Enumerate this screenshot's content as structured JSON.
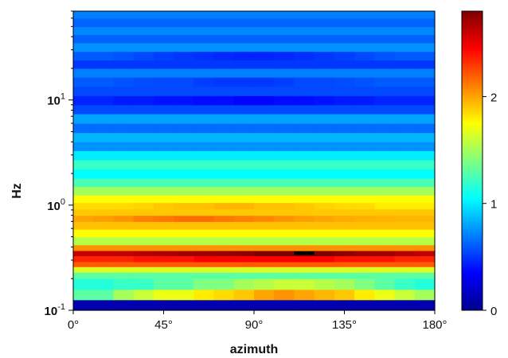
{
  "chart_data": {
    "type": "heatmap",
    "title": "",
    "xlabel": "azimuth",
    "ylabel": "Hz",
    "x_scale": "linear",
    "y_scale": "log",
    "xlim": [
      0,
      180
    ],
    "ylim": [
      0.1,
      70
    ],
    "x_ticks": [
      {
        "value": 0,
        "label": "0°"
      },
      {
        "value": 45,
        "label": "45°"
      },
      {
        "value": 90,
        "label": "90°"
      },
      {
        "value": 135,
        "label": "135°"
      },
      {
        "value": 180,
        "label": "180°"
      }
    ],
    "y_ticks": [
      {
        "value": 0.1,
        "base": "10",
        "exp": "-1"
      },
      {
        "value": 1,
        "base": "10",
        "exp": "0"
      },
      {
        "value": 10,
        "base": "10",
        "exp": "1"
      }
    ],
    "colorbar": {
      "colormap": "jet",
      "vmin": 0,
      "vmax": 2.8,
      "ticks": [
        {
          "value": 0,
          "label": "0"
        },
        {
          "value": 1,
          "label": "1"
        },
        {
          "value": 2,
          "label": "2"
        }
      ]
    },
    "azimuth_columns": 18,
    "frequency_bands": [
      {
        "f_low": 0.1,
        "f_high": 0.126,
        "values": [
          0.1
        ]
      },
      {
        "f_low": 0.126,
        "f_high": 0.158,
        "values": [
          1.3,
          1.3,
          1.5,
          1.6,
          1.7,
          1.7,
          1.8,
          1.85,
          1.9,
          2.0,
          2.05,
          2.0,
          1.95,
          1.9,
          1.8,
          1.7,
          1.6,
          1.5
        ]
      },
      {
        "f_low": 0.158,
        "f_high": 0.2,
        "values": [
          1.15,
          1.15,
          1.2,
          1.2,
          1.3,
          1.3,
          1.4,
          1.4,
          1.5,
          1.55,
          1.6,
          1.6,
          1.55,
          1.5,
          1.4,
          1.3,
          1.2,
          1.15
        ]
      },
      {
        "f_low": 0.2,
        "f_high": 0.23,
        "values": [
          1.3
        ]
      },
      {
        "f_low": 0.23,
        "f_high": 0.26,
        "values": [
          1.65
        ]
      },
      {
        "f_low": 0.26,
        "f_high": 0.29,
        "values": [
          2.2
        ]
      },
      {
        "f_low": 0.29,
        "f_high": 0.33,
        "values": [
          2.35,
          2.35,
          2.35,
          2.4,
          2.4,
          2.4,
          2.45,
          2.45,
          2.45,
          2.45,
          2.45,
          2.45,
          2.45,
          2.4,
          2.4,
          2.4,
          2.35,
          2.35
        ]
      },
      {
        "f_low": 0.33,
        "f_high": 0.37,
        "values": [
          2.6,
          2.6,
          2.62,
          2.65,
          2.68,
          2.7,
          2.72,
          2.74,
          2.76,
          2.8,
          2.82,
          2.85,
          2.8,
          2.76,
          2.72,
          2.7,
          2.66,
          2.62
        ]
      },
      {
        "f_low": 0.37,
        "f_high": 0.42,
        "values": [
          2.05
        ]
      },
      {
        "f_low": 0.42,
        "f_high": 0.5,
        "values": [
          1.55
        ]
      },
      {
        "f_low": 0.5,
        "f_high": 0.59,
        "values": [
          1.75
        ]
      },
      {
        "f_low": 0.59,
        "f_high": 0.7,
        "values": [
          1.92
        ]
      },
      {
        "f_low": 0.7,
        "f_high": 0.8,
        "values": [
          2.0,
          2.02,
          2.05,
          2.1,
          2.12,
          2.15,
          2.15,
          2.12,
          2.1,
          2.08,
          2.05,
          2.02,
          2.0,
          1.98,
          1.97,
          1.96,
          1.95,
          1.95
        ]
      },
      {
        "f_low": 0.8,
        "f_high": 0.92,
        "values": [
          1.9
        ]
      },
      {
        "f_low": 0.92,
        "f_high": 1.06,
        "values": [
          1.85,
          1.85,
          1.85,
          1.87,
          1.9,
          1.92,
          1.92,
          1.95,
          1.95,
          1.92,
          1.92,
          1.9,
          1.87,
          1.85,
          1.85,
          1.8,
          1.8,
          1.8
        ]
      },
      {
        "f_low": 1.06,
        "f_high": 1.25,
        "values": [
          1.75
        ]
      },
      {
        "f_low": 1.25,
        "f_high": 1.5,
        "values": [
          1.5
        ]
      },
      {
        "f_low": 1.5,
        "f_high": 1.8,
        "values": [
          1.25
        ]
      },
      {
        "f_low": 1.8,
        "f_high": 2.2,
        "values": [
          1.05
        ]
      },
      {
        "f_low": 2.2,
        "f_high": 2.7,
        "values": [
          1.2
        ]
      },
      {
        "f_low": 2.7,
        "f_high": 3.3,
        "values": [
          1.0
        ]
      },
      {
        "f_low": 3.3,
        "f_high": 4.0,
        "values": [
          0.75
        ]
      },
      {
        "f_low": 4.0,
        "f_high": 4.9,
        "values": [
          0.85
        ]
      },
      {
        "f_low": 4.9,
        "f_high": 6.0,
        "values": [
          0.65
        ]
      },
      {
        "f_low": 6.0,
        "f_high": 7.4,
        "values": [
          0.8
        ]
      },
      {
        "f_low": 7.4,
        "f_high": 9.0,
        "values": [
          0.55
        ]
      },
      {
        "f_low": 9.0,
        "f_high": 11.0,
        "values": [
          0.45,
          0.45,
          0.42,
          0.42,
          0.4,
          0.4,
          0.38,
          0.38,
          0.36,
          0.36,
          0.38,
          0.38,
          0.4,
          0.42,
          0.42,
          0.45,
          0.45,
          0.45
        ]
      },
      {
        "f_low": 11.0,
        "f_high": 13.5,
        "values": [
          0.55
        ]
      },
      {
        "f_low": 13.5,
        "f_high": 16.5,
        "values": [
          0.6,
          0.6,
          0.58,
          0.56,
          0.55,
          0.55,
          0.52,
          0.5,
          0.5,
          0.5,
          0.52,
          0.55,
          0.55,
          0.56,
          0.58,
          0.6,
          0.6,
          0.6
        ]
      },
      {
        "f_low": 16.5,
        "f_high": 20.0,
        "values": [
          0.7
        ]
      },
      {
        "f_low": 20.0,
        "f_high": 24.0,
        "values": [
          0.5
        ]
      },
      {
        "f_low": 24.0,
        "f_high": 29.0,
        "values": [
          0.6,
          0.6,
          0.58,
          0.55,
          0.52,
          0.5,
          0.48,
          0.46,
          0.45,
          0.45,
          0.46,
          0.48,
          0.5,
          0.52,
          0.55,
          0.58,
          0.6,
          0.6
        ]
      },
      {
        "f_low": 29.0,
        "f_high": 35.0,
        "values": [
          0.75
        ]
      },
      {
        "f_low": 35.0,
        "f_high": 42.0,
        "values": [
          0.62
        ]
      },
      {
        "f_low": 42.0,
        "f_high": 50.0,
        "values": [
          0.72
        ]
      },
      {
        "f_low": 50.0,
        "f_high": 60.0,
        "values": [
          0.62
        ]
      },
      {
        "f_low": 60.0,
        "f_high": 70.0,
        "values": [
          0.7
        ]
      }
    ],
    "highlight_cells": [
      {
        "azimuth_low": 110,
        "azimuth_high": 120,
        "f_low": 0.33,
        "f_high": 0.37,
        "color": "#000000"
      }
    ]
  }
}
